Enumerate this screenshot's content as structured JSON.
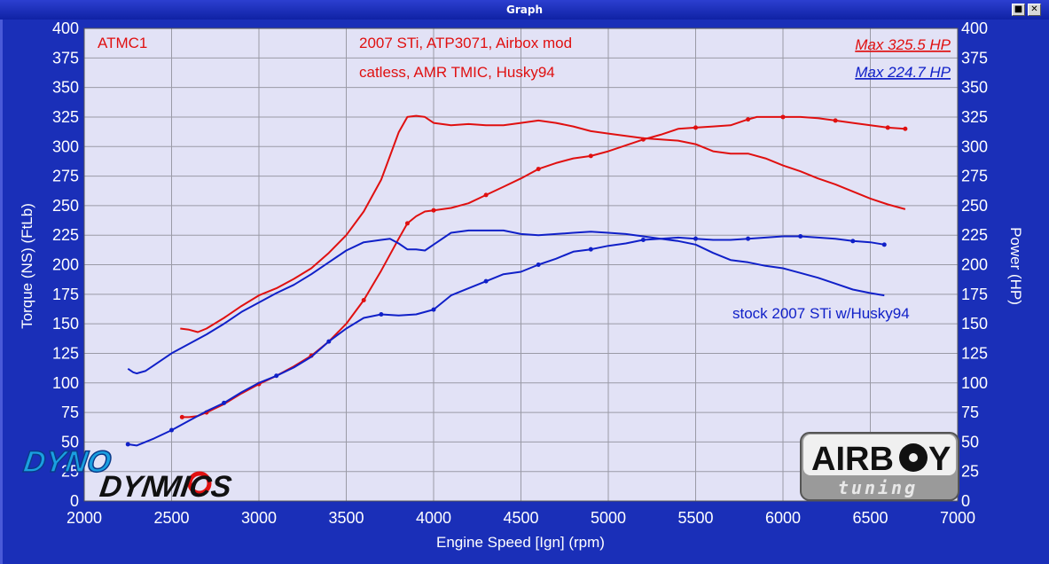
{
  "window": {
    "title": "Graph"
  },
  "chart_data": {
    "type": "line",
    "xlabel": "Engine Speed [Ign] (rpm)",
    "ylabel_left": "Torque (NS) (FtLb)",
    "ylabel_right": "Power (HP)",
    "xlim": [
      2000,
      7000
    ],
    "ylim": [
      0,
      400
    ],
    "x_ticks": [
      "2000",
      "2500",
      "3000",
      "3500",
      "4000",
      "4500",
      "5000",
      "5500",
      "6000",
      "6500",
      "7000"
    ],
    "y_ticks": [
      "0",
      "25",
      "50",
      "75",
      "100",
      "125",
      "150",
      "175",
      "200",
      "225",
      "250",
      "275",
      "300",
      "325",
      "350",
      "375",
      "400"
    ],
    "grid": true,
    "annotations": {
      "run_name": "ATMC1",
      "desc_line1": "2007 STi, ATP3071, Airbox mod",
      "desc_line2": "catless, AMR TMIC, Husky94",
      "max_red": "Max 325.5 HP",
      "max_blue": "Max 224.7 HP",
      "blue_label": "stock 2007 STi w/Husky94"
    },
    "colors": {
      "red": "#e01010",
      "blue": "#1020c8",
      "plot_bg": "#e2e2f6",
      "grid": "#9a9aa6"
    },
    "series": [
      {
        "color": "red",
        "kind": "torque",
        "x": [
          2550,
          2600,
          2650,
          2700,
          2800,
          2900,
          3000,
          3100,
          3200,
          3300,
          3400,
          3500,
          3600,
          3700,
          3750,
          3800,
          3850,
          3900,
          3950,
          4000,
          4100,
          4200,
          4300,
          4400,
          4500,
          4600,
          4700,
          4800,
          4900,
          5000,
          5100,
          5200,
          5300,
          5400,
          5500,
          5600,
          5700,
          5800,
          5900,
          6000,
          6100,
          6200,
          6300,
          6400,
          6500,
          6600,
          6700
        ],
        "y": [
          146,
          145,
          143,
          146,
          155,
          165,
          174,
          180,
          188,
          197,
          210,
          225,
          245,
          272,
          292,
          312,
          325,
          326,
          325,
          320,
          318,
          319,
          318,
          318,
          320,
          322,
          320,
          317,
          313,
          311,
          309,
          307,
          306,
          305,
          302,
          296,
          294,
          294,
          290,
          284,
          279,
          273,
          268,
          262,
          256,
          251,
          247
        ]
      },
      {
        "color": "red",
        "kind": "power",
        "x": [
          2560,
          2600,
          2650,
          2700,
          2800,
          2900,
          3000,
          3100,
          3200,
          3300,
          3400,
          3500,
          3600,
          3700,
          3800,
          3850,
          3900,
          3950,
          4000,
          4100,
          4200,
          4300,
          4400,
          4500,
          4600,
          4700,
          4800,
          4900,
          5000,
          5100,
          5200,
          5300,
          5400,
          5500,
          5600,
          5700,
          5800,
          5850,
          5900,
          6000,
          6100,
          6200,
          6300,
          6400,
          6500,
          6600,
          6700
        ],
        "y": [
          71,
          71,
          72,
          75,
          82,
          91,
          99,
          106,
          114,
          123,
          135,
          150,
          170,
          195,
          222,
          235,
          241,
          245,
          246,
          248,
          252,
          259,
          266,
          273,
          281,
          286,
          290,
          292,
          296,
          301,
          306,
          310,
          315,
          316,
          317,
          318,
          323,
          325,
          325,
          325,
          325,
          324,
          322,
          320,
          318,
          316,
          315
        ]
      },
      {
        "color": "blue",
        "kind": "torque",
        "x": [
          2250,
          2280,
          2300,
          2350,
          2400,
          2500,
          2600,
          2700,
          2800,
          2900,
          3000,
          3100,
          3200,
          3300,
          3400,
          3500,
          3600,
          3700,
          3750,
          3800,
          3850,
          3900,
          3950,
          4000,
          4100,
          4200,
          4300,
          4400,
          4500,
          4600,
          4700,
          4800,
          4900,
          5000,
          5100,
          5200,
          5300,
          5400,
          5500,
          5600,
          5700,
          5800,
          5900,
          6000,
          6100,
          6200,
          6300,
          6400,
          6500,
          6580
        ],
        "y": [
          112,
          109,
          108,
          110,
          115,
          125,
          133,
          141,
          150,
          160,
          168,
          176,
          183,
          192,
          202,
          212,
          219,
          221,
          222,
          218,
          213,
          213,
          212,
          217,
          227,
          229,
          229,
          229,
          226,
          225,
          226,
          227,
          228,
          227,
          226,
          224,
          222,
          220,
          217,
          210,
          204,
          202,
          199,
          197,
          193,
          189,
          184,
          179,
          176,
          174
        ]
      },
      {
        "color": "blue",
        "kind": "power",
        "x": [
          2250,
          2300,
          2400,
          2500,
          2600,
          2700,
          2800,
          2900,
          3000,
          3100,
          3200,
          3300,
          3400,
          3500,
          3600,
          3700,
          3800,
          3900,
          4000,
          4100,
          4200,
          4300,
          4400,
          4500,
          4600,
          4700,
          4800,
          4900,
          5000,
          5100,
          5200,
          5300,
          5400,
          5500,
          5600,
          5700,
          5800,
          5900,
          6000,
          6100,
          6200,
          6300,
          6400,
          6500,
          6580
        ],
        "y": [
          48,
          47,
          53,
          60,
          68,
          76,
          83,
          92,
          100,
          106,
          113,
          122,
          135,
          146,
          155,
          158,
          157,
          158,
          162,
          174,
          180,
          186,
          192,
          194,
          200,
          205,
          211,
          213,
          216,
          218,
          221,
          222,
          223,
          222,
          221,
          221,
          222,
          223,
          224,
          224,
          223,
          222,
          220,
          219,
          217
        ]
      }
    ]
  },
  "logos": {
    "left_line1": "DYNO",
    "left_line2": "DYN",
    "left_line3": "MICS",
    "right_main": "AIRB",
    "right_end": "Y",
    "right_sub": "tuning"
  }
}
